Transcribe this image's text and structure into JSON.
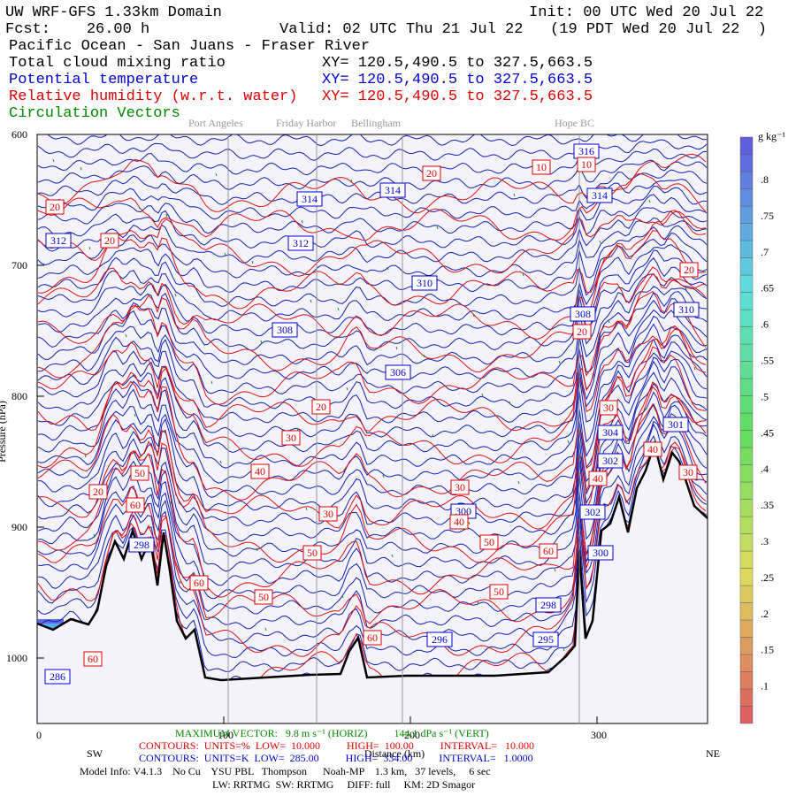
{
  "header": {
    "title": "UW WRF-GFS 1.33km Domain",
    "init": "Init: 00 UTC Wed 20 Jul 22",
    "fcst": "Fcst:    26.00 h",
    "valid": "Valid: 02 UTC Thu 21 Jul 22   (19 PDT Wed 20 Jul 22  )",
    "region": "Pacific Ocean - San Juans - Fraser River",
    "fields": [
      {
        "name": "Total cloud mixing ratio",
        "xy": "XY= 120.5,490.5 to 327.5,663.5",
        "color": "#000000"
      },
      {
        "name": "Potential temperature",
        "xy": "XY= 120.5,490.5 to 327.5,663.5",
        "color": "#0000cc"
      },
      {
        "name": "Relative humidity (w.r.t. water)",
        "xy": "XY= 120.5,490.5 to 327.5,663.5",
        "color": "#dd0000"
      },
      {
        "name": "Circulation Vectors",
        "color": "#008800"
      }
    ]
  },
  "places": [
    "Port Angeles",
    "Friday Harbor",
    "Bellingham",
    "Hope BC"
  ],
  "axes": {
    "ylabel": "Pressure (hPa)",
    "xlabel": "Distance (km)",
    "left_end": "SW",
    "right_end": "NE",
    "ylim": [
      600,
      1050
    ],
    "yticks": [
      600,
      700,
      800,
      900,
      1000
    ],
    "xlim": [
      0,
      360
    ],
    "xticks": [
      0,
      100,
      200,
      300
    ]
  },
  "contours": {
    "blue": [
      "316",
      "314",
      "314",
      "314",
      "312",
      "312",
      "310",
      "308",
      "310",
      "308",
      "306",
      "304",
      "301",
      "302",
      "300",
      "302",
      "300",
      "298",
      "298",
      "296",
      "295",
      "286"
    ],
    "red": [
      "10",
      "10",
      "20",
      "20",
      "20",
      "20",
      "20",
      "20",
      "30",
      "30",
      "40",
      "40",
      "50",
      "20",
      "30",
      "60",
      "30",
      "40",
      "40",
      "50",
      "50",
      "60",
      "60",
      "50",
      "50",
      "60",
      "60",
      "30"
    ]
  },
  "colorbar": {
    "unit": "g kg⁻¹",
    "labels": [
      ".8",
      ".75",
      ".7",
      ".65",
      ".6",
      ".55",
      ".5",
      ".45",
      ".4",
      ".35",
      ".3",
      ".25",
      ".2",
      ".15",
      ".1"
    ]
  },
  "footer": {
    "vector": "MAXIMUM VECTOR:   9.8 m s⁻¹ (HORIZ)          144.1 dPa s⁻¹ (VERT)",
    "rh": "CONTOURS:  UNITS=%  LOW=  10.000          HIGH=  100.00          INTERVAL=   10.000",
    "theta": "CONTOURS:  UNITS=K  LOW=  285.00          HIGH=  334.00          INTERVAL=   1.0000",
    "model": "Model Info: V4.1.3    No Cu    YSU PBL   Thompson      Noah-MP    1.3 km,   37 levels,     6 sec",
    "physics": "LW: RRTMG  SW: RRTMG     DIFF: full     KM: 2D Smagor"
  }
}
